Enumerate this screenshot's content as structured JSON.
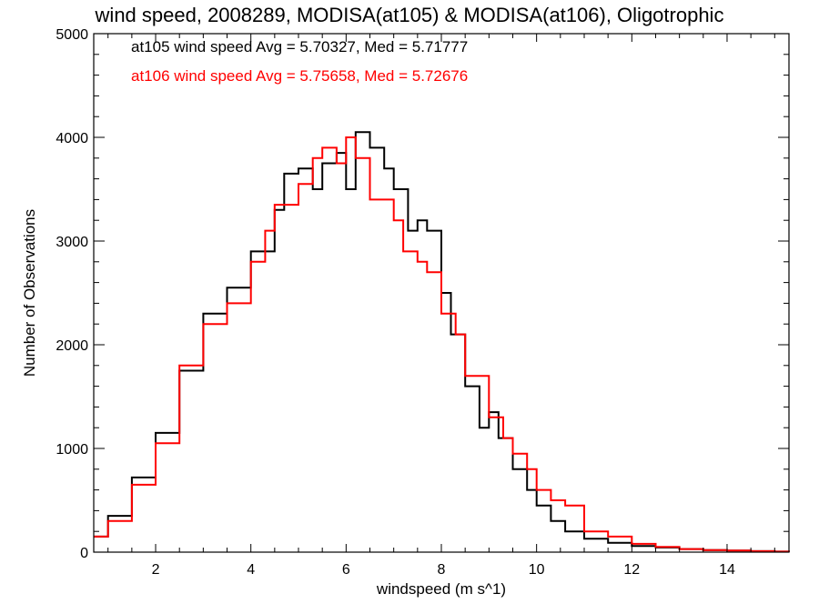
{
  "chart_data": {
    "type": "line",
    "step": true,
    "title": "wind speed, 2008289, MODISA(at105) & MODISA(at106), Oligotrophic",
    "xlabel": "windspeed (m s^1)",
    "ylabel": "Number of Observations",
    "xlim": [
      0.7,
      15.3
    ],
    "ylim": [
      0,
      5000
    ],
    "xticks": [
      2,
      4,
      6,
      8,
      10,
      12,
      14
    ],
    "yticks": [
      0,
      1000,
      2000,
      3000,
      4000,
      5000
    ],
    "annotations": [
      {
        "text": "at105 wind speed Avg = 5.70327, Med = 5.71777",
        "color": "#000000"
      },
      {
        "text": "at106 wind speed Avg = 5.75658, Med = 5.72676",
        "color": "#ff0000"
      }
    ],
    "series": [
      {
        "color": "#000000",
        "points": [
          [
            0.7,
            150
          ],
          [
            1.0,
            350
          ],
          [
            1.5,
            720
          ],
          [
            2.0,
            1150
          ],
          [
            2.5,
            1750
          ],
          [
            3.0,
            2300
          ],
          [
            3.5,
            2550
          ],
          [
            4.0,
            2900
          ],
          [
            4.5,
            3300
          ],
          [
            4.7,
            3650
          ],
          [
            5.0,
            3700
          ],
          [
            5.3,
            3500
          ],
          [
            5.5,
            3750
          ],
          [
            5.8,
            3850
          ],
          [
            6.0,
            3500
          ],
          [
            6.2,
            4050
          ],
          [
            6.5,
            3900
          ],
          [
            6.8,
            3700
          ],
          [
            7.0,
            3500
          ],
          [
            7.3,
            3100
          ],
          [
            7.5,
            3200
          ],
          [
            7.7,
            3100
          ],
          [
            8.0,
            2500
          ],
          [
            8.2,
            2100
          ],
          [
            8.5,
            1600
          ],
          [
            8.8,
            1200
          ],
          [
            9.0,
            1350
          ],
          [
            9.2,
            1100
          ],
          [
            9.5,
            800
          ],
          [
            9.8,
            600
          ],
          [
            10.0,
            450
          ],
          [
            10.3,
            300
          ],
          [
            10.6,
            200
          ],
          [
            11.0,
            130
          ],
          [
            11.5,
            90
          ],
          [
            12.0,
            60
          ],
          [
            12.5,
            45
          ],
          [
            13.0,
            30
          ],
          [
            13.5,
            20
          ],
          [
            14.0,
            15
          ],
          [
            14.5,
            10
          ],
          [
            15.0,
            5
          ],
          [
            15.3,
            3
          ]
        ]
      },
      {
        "color": "#ff0000",
        "points": [
          [
            0.7,
            150
          ],
          [
            1.0,
            300
          ],
          [
            1.5,
            650
          ],
          [
            2.0,
            1050
          ],
          [
            2.5,
            1800
          ],
          [
            3.0,
            2200
          ],
          [
            3.5,
            2400
          ],
          [
            4.0,
            2800
          ],
          [
            4.3,
            3100
          ],
          [
            4.5,
            3350
          ],
          [
            5.0,
            3550
          ],
          [
            5.3,
            3800
          ],
          [
            5.5,
            3900
          ],
          [
            5.8,
            3750
          ],
          [
            6.0,
            4000
          ],
          [
            6.2,
            3800
          ],
          [
            6.5,
            3400
          ],
          [
            7.0,
            3200
          ],
          [
            7.2,
            2900
          ],
          [
            7.5,
            2800
          ],
          [
            7.7,
            2700
          ],
          [
            8.0,
            2300
          ],
          [
            8.3,
            2100
          ],
          [
            8.5,
            1700
          ],
          [
            9.0,
            1300
          ],
          [
            9.3,
            1100
          ],
          [
            9.5,
            950
          ],
          [
            9.8,
            800
          ],
          [
            10.0,
            600
          ],
          [
            10.3,
            500
          ],
          [
            10.6,
            450
          ],
          [
            11.0,
            200
          ],
          [
            11.5,
            150
          ],
          [
            12.0,
            80
          ],
          [
            12.5,
            50
          ],
          [
            13.0,
            30
          ],
          [
            13.5,
            20
          ],
          [
            14.0,
            15
          ],
          [
            14.5,
            10
          ],
          [
            15.0,
            5
          ],
          [
            15.3,
            3
          ]
        ]
      }
    ]
  }
}
